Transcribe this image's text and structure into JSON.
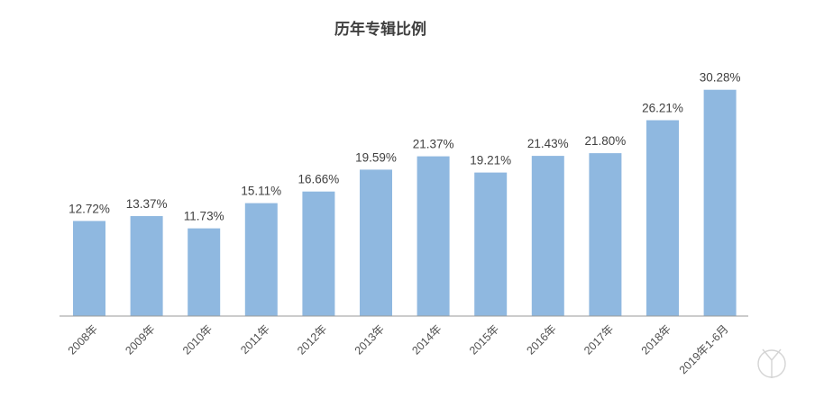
{
  "chart_data": {
    "type": "bar",
    "title": "历年专辑比例",
    "categories": [
      "2008年",
      "2009年",
      "2010年",
      "2011年",
      "2012年",
      "2013年",
      "2014年",
      "2015年",
      "2016年",
      "2017年",
      "2018年",
      "2019年1-6月"
    ],
    "values": [
      12.72,
      13.37,
      11.73,
      15.11,
      16.66,
      19.59,
      21.37,
      19.21,
      21.43,
      21.8,
      26.21,
      30.28
    ],
    "labels": [
      "12.72%",
      "13.37%",
      "11.73%",
      "15.11%",
      "16.66%",
      "19.59%",
      "21.37%",
      "19.21%",
      "21.43%",
      "21.80%",
      "26.21%",
      "30.28%"
    ],
    "unit": "%",
    "xlabel": "",
    "ylabel": "",
    "grid": false,
    "legend": "none",
    "colors": {
      "bar": "#8fb8e0",
      "text": "#404040",
      "axis": "#9a9a9a"
    }
  }
}
